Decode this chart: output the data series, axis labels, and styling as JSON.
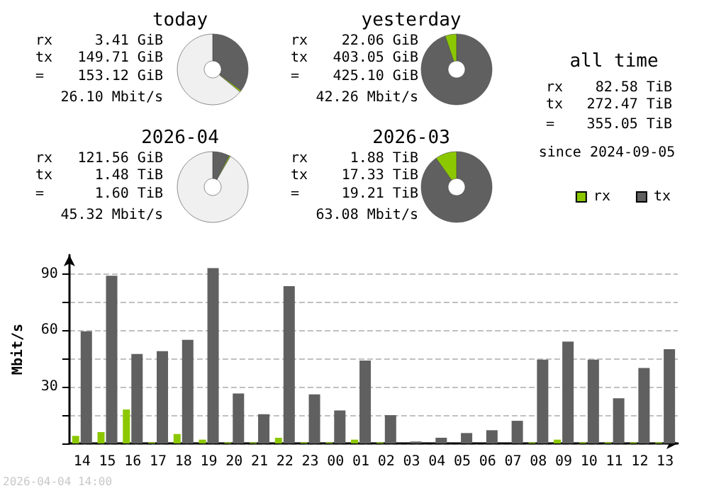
{
  "chart_data": [
    {
      "type": "donut",
      "title": "today",
      "categories": [
        null,
        null,
        null
      ],
      "values": [
        35.2,
        0.8,
        64.0
      ],
      "colors": [
        "#606060",
        "#8cc800",
        "#f0f0f0"
      ],
      "annotations": [
        "rx 3.41 GiB",
        "tx 149.71 GiB",
        "= 153.12 GiB",
        "26.10 Mbit/s"
      ]
    },
    {
      "type": "donut",
      "title": "yesterday",
      "categories": [
        null,
        null
      ],
      "values": [
        94.8,
        5.2
      ],
      "colors": [
        "#606060",
        "#8cc800"
      ],
      "annotations": [
        "rx 22.06 GiB",
        "tx 403.05 GiB",
        "= 425.10 GiB",
        "42.26 Mbit/s"
      ]
    },
    {
      "type": "other",
      "title": "all time",
      "annotations": [
        "rx 82.58 TiB",
        "tx 272.47 TiB",
        "= 355.05 TiB",
        "since 2024-09-05"
      ]
    },
    {
      "type": "donut",
      "title": "2026-04",
      "categories": [
        null,
        null,
        null
      ],
      "values": [
        7.7,
        0.6,
        91.7
      ],
      "colors": [
        "#606060",
        "#8cc800",
        "#f0f0f0"
      ],
      "annotations": [
        "rx 121.56 GiB",
        "tx 1.48 TiB",
        "= 1.60 TiB",
        "45.32 Mbit/s"
      ]
    },
    {
      "type": "donut",
      "title": "2026-03",
      "categories": [
        null,
        null
      ],
      "values": [
        90.2,
        9.8
      ],
      "colors": [
        "#606060",
        "#8cc800"
      ],
      "annotations": [
        "rx 1.88 TiB",
        "tx 17.33 TiB",
        "= 19.21 TiB",
        "63.08 Mbit/s"
      ]
    },
    {
      "type": "bar",
      "categories": [
        "14",
        "15",
        "16",
        "17",
        "18",
        "19",
        "20",
        "21",
        "22",
        "23",
        "00",
        "01",
        "02",
        "03",
        "04",
        "05",
        "06",
        "07",
        "08",
        "09",
        "10",
        "11",
        "12",
        "13"
      ],
      "series": [
        {
          "name": "rx",
          "color": "#8cc800",
          "values": [
            4,
            6,
            18,
            0.5,
            5,
            2,
            0.5,
            0.5,
            3,
            0.5,
            0.5,
            2,
            0.5,
            0,
            0,
            0,
            0,
            0,
            0.5,
            2,
            0.5,
            0.5,
            0.5,
            0.5
          ]
        },
        {
          "name": "tx",
          "color": "#606060",
          "values": [
            59.5,
            89,
            47.5,
            49,
            55,
            93,
            26.5,
            15.5,
            83.5,
            26,
            17.5,
            44,
            15,
            1,
            3,
            5.5,
            7,
            12,
            44.5,
            54,
            44.5,
            24,
            40,
            50
          ]
        }
      ],
      "ylabel": "Mbit/s",
      "ylim": [
        0,
        100
      ],
      "yticks": [
        {
          "value": 0,
          "label": null
        },
        {
          "value": 15,
          "label": null
        },
        30,
        {
          "value": 45,
          "label": null
        },
        60,
        {
          "value": 75,
          "label": null
        },
        90
      ],
      "grid": "y",
      "legend": "top right",
      "annotations": [
        "2026-04-04 14:00"
      ]
    }
  ]
}
